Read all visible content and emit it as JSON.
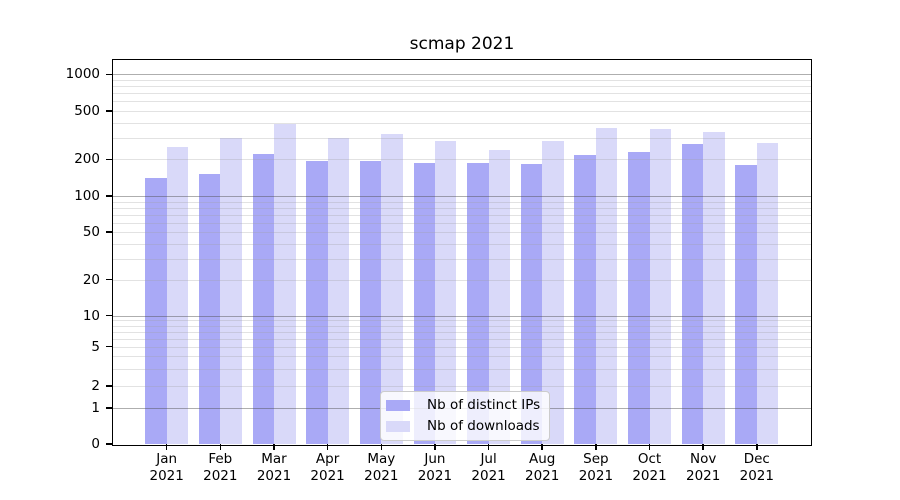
{
  "title": "scmap 2021",
  "chart_data": {
    "type": "bar",
    "title": "scmap 2021",
    "categories": [
      "Jan",
      "Feb",
      "Mar",
      "Apr",
      "May",
      "Jun",
      "Jul",
      "Aug",
      "Sep",
      "Oct",
      "Nov",
      "Dec"
    ],
    "year_label": "2021",
    "series": [
      {
        "name": "Nb of distinct IPs",
        "color": "#a9a9f6",
        "values": [
          142,
          151,
          221,
          193,
          193,
          188,
          186,
          184,
          218,
          232,
          268,
          180
        ]
      },
      {
        "name": "Nb of downloads",
        "color": "#d9d9f9",
        "values": [
          252,
          299,
          390,
          302,
          323,
          281,
          238,
          284,
          359,
          355,
          337,
          273
        ]
      }
    ],
    "yscale": "symlog",
    "yticks": [
      0,
      1,
      2,
      5,
      10,
      20,
      50,
      100,
      200,
      500,
      1000
    ],
    "ylim": [
      0,
      1300
    ],
    "xlabel": "",
    "ylabel": "",
    "grid": "on",
    "legend_position": "lower center",
    "colors": {
      "major_grid": "#adadad",
      "minor_grid": "#e7e7e7",
      "axis": "#000000",
      "text": "#000000",
      "background": "#ffffff"
    }
  }
}
